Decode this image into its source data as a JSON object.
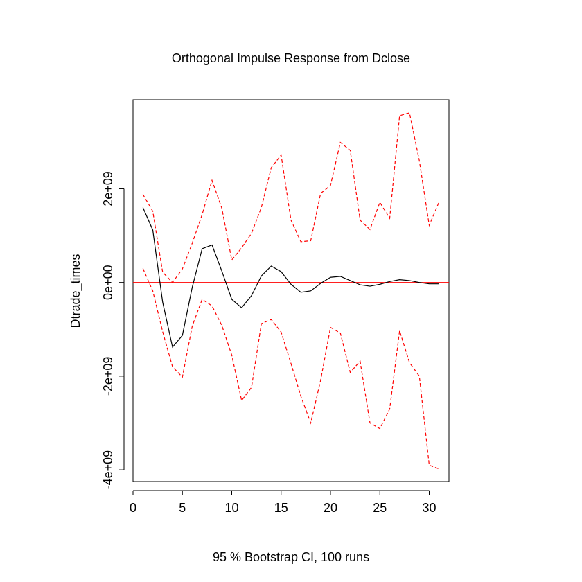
{
  "chart_data": {
    "type": "line",
    "title": "Orthogonal Impulse Response from Dclose",
    "xlabel": "95 % Bootstrap CI,  100 runs",
    "ylabel": "Dtrade_times",
    "xlim": [
      0,
      32
    ],
    "ylim": [
      -4250000000.0,
      3900000000.0
    ],
    "x_ticks": [
      0,
      5,
      10,
      15,
      20,
      25,
      30
    ],
    "x_tick_labels": [
      "0",
      "5",
      "10",
      "15",
      "20",
      "25",
      "30"
    ],
    "y_ticks": [
      -4000000000.0,
      -2000000000.0,
      0,
      2000000000.0
    ],
    "y_tick_labels": [
      "-4e+09",
      "-2e+09",
      "0e+00",
      "2e+09"
    ],
    "grid": false,
    "x": [
      1,
      2,
      3,
      4,
      5,
      6,
      7,
      8,
      9,
      10,
      11,
      12,
      13,
      14,
      15,
      16,
      17,
      18,
      19,
      20,
      21,
      22,
      23,
      24,
      25,
      26,
      27,
      28,
      29,
      30,
      31
    ],
    "series": [
      {
        "role": "response",
        "color": "#000000",
        "dash": "solid",
        "values": [
          1600000000.0,
          1120000000.0,
          -420000000.0,
          -1380000000.0,
          -1130000000.0,
          -100000000.0,
          720000000.0,
          800000000.0,
          240000000.0,
          -360000000.0,
          -540000000.0,
          -280000000.0,
          140000000.0,
          350000000.0,
          230000000.0,
          -40000000.0,
          -210000000.0,
          -180000000.0,
          -20000000.0,
          110000000.0,
          130000000.0,
          40000000.0,
          -50000000.0,
          -80000000.0,
          -40000000.0,
          20000000.0,
          60000000.0,
          40000000.0,
          0.0,
          -30000000.0,
          -30000000.0
        ]
      },
      {
        "role": "upper",
        "color": "#ff0000",
        "dash": "dashed",
        "values": [
          1880000000.0,
          1520000000.0,
          220000000.0,
          0.0,
          290000000.0,
          840000000.0,
          1450000000.0,
          2180000000.0,
          1580000000.0,
          480000000.0,
          740000000.0,
          1050000000.0,
          1600000000.0,
          2450000000.0,
          2720000000.0,
          1330000000.0,
          870000000.0,
          890000000.0,
          1900000000.0,
          2070000000.0,
          2990000000.0,
          2820000000.0,
          1330000000.0,
          1130000000.0,
          1710000000.0,
          1370000000.0,
          3560000000.0,
          3620000000.0,
          2600000000.0,
          1220000000.0,
          1720000000.0
        ]
      },
      {
        "role": "lower",
        "color": "#ff0000",
        "dash": "dashed",
        "values": [
          300000000.0,
          -180000000.0,
          -1050000000.0,
          -1800000000.0,
          -2020000000.0,
          -930000000.0,
          -360000000.0,
          -500000000.0,
          -920000000.0,
          -1550000000.0,
          -2520000000.0,
          -2240000000.0,
          -880000000.0,
          -790000000.0,
          -1060000000.0,
          -1730000000.0,
          -2430000000.0,
          -3000000000.0,
          -2090000000.0,
          -960000000.0,
          -1080000000.0,
          -1920000000.0,
          -1680000000.0,
          -3000000000.0,
          -3120000000.0,
          -2700000000.0,
          -1030000000.0,
          -1710000000.0,
          -2000000000.0,
          -3900000000.0,
          -3980000000.0
        ]
      }
    ],
    "hlines": [
      {
        "y": 0,
        "color": "#ff0000",
        "dash": "solid"
      }
    ]
  }
}
